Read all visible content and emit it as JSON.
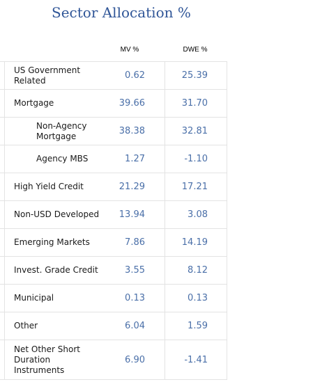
{
  "title": "Sector Allocation %",
  "columns": {
    "mv": "MV %",
    "dwe": "DWE %"
  },
  "rows": [
    {
      "label": "US Government Related",
      "mv": "0.62",
      "dwe": "25.39"
    },
    {
      "label": "Mortgage",
      "mv": "39.66",
      "dwe": "31.70"
    },
    {
      "label": "Non-Agency Mortgage",
      "mv": "38.38",
      "dwe": "32.81"
    },
    {
      "label": "Agency MBS",
      "mv": "1.27",
      "dwe": "-1.10"
    },
    {
      "label": "High Yield Credit",
      "mv": "21.29",
      "dwe": "17.21"
    },
    {
      "label": "Non-USD Developed",
      "mv": "13.94",
      "dwe": "3.08"
    },
    {
      "label": "Emerging Markets",
      "mv": "7.86",
      "dwe": "14.19"
    },
    {
      "label": "Invest. Grade Credit",
      "mv": "3.55",
      "dwe": "8.12"
    },
    {
      "label": "Municipal",
      "mv": "0.13",
      "dwe": "0.13"
    },
    {
      "label": "Other",
      "mv": "6.04",
      "dwe": "1.59"
    },
    {
      "label": "Net Other Short Duration Instruments",
      "mv": "6.90",
      "dwe": "-1.41"
    }
  ]
}
